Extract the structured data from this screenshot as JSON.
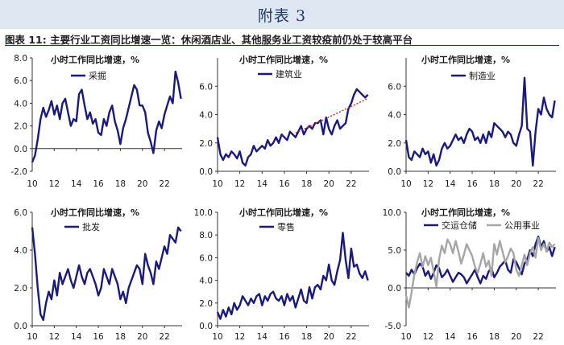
{
  "header": {
    "title": "附表 3"
  },
  "figure": {
    "label": "图表 11:",
    "title": "主要行业工资同比增速一览：休闲酒店业、其他服务业工资较疫前仍处于较高平台"
  },
  "colors": {
    "navy": "#1a1a7e",
    "gray": "#a6a6a6",
    "trend": "#d42020"
  },
  "chart_data": [
    {
      "type": "line",
      "title": "小时工作同比增速，%",
      "xlabel": "",
      "ylabel": "",
      "xlim": [
        2010,
        2023.6
      ],
      "xticks": [
        10,
        12,
        14,
        16,
        18,
        20,
        22
      ],
      "ylim": [
        -2,
        8
      ],
      "yticks": [
        "-2.0",
        "0.0",
        "2.0",
        "4.0",
        "6.0",
        "8.0"
      ],
      "ytick_values": [
        -2,
        0,
        2,
        4,
        6,
        8
      ],
      "grid": false,
      "series": [
        {
          "name": "采掘",
          "color": "#1a1a7e",
          "x": [
            2010,
            2010.25,
            2010.5,
            2010.75,
            2011,
            2011.25,
            2011.5,
            2011.75,
            2012,
            2012.25,
            2012.5,
            2012.75,
            2013,
            2013.25,
            2013.5,
            2013.75,
            2014,
            2014.25,
            2014.5,
            2014.75,
            2015,
            2015.25,
            2015.5,
            2015.75,
            2016,
            2016.25,
            2016.5,
            2016.75,
            2017,
            2017.25,
            2017.5,
            2017.75,
            2018,
            2018.25,
            2018.5,
            2018.75,
            2019,
            2019.25,
            2019.5,
            2019.75,
            2020,
            2020.25,
            2020.5,
            2020.75,
            2021,
            2021.25,
            2021.5,
            2021.75,
            2022,
            2022.25,
            2022.5,
            2022.75,
            2023,
            2023.25,
            2023.5
          ],
          "y": [
            -1.2,
            -0.6,
            0.8,
            2.6,
            3.6,
            2.8,
            3.4,
            4.2,
            3.0,
            3.8,
            2.6,
            4.0,
            4.4,
            3.2,
            2.0,
            2.6,
            2.4,
            4.8,
            5.2,
            3.8,
            2.6,
            3.2,
            2.2,
            2.6,
            1.4,
            1.2,
            2.6,
            2.0,
            3.2,
            3.8,
            2.4,
            1.6,
            0.4,
            1.8,
            2.6,
            3.6,
            4.6,
            5.6,
            5.2,
            3.8,
            3.8,
            3.2,
            1.4,
            0.6,
            -0.4,
            1.6,
            2.4,
            1.8,
            3.0,
            3.8,
            4.6,
            4.0,
            6.8,
            5.8,
            4.4
          ]
        }
      ]
    },
    {
      "type": "line",
      "title": "小时工作同比增速，%",
      "xlabel": "",
      "ylabel": "",
      "xlim": [
        2010,
        2023.6
      ],
      "xticks": [
        10,
        12,
        14,
        16,
        18,
        20,
        22
      ],
      "ylim": [
        0,
        8
      ],
      "yticks": [
        "0.0",
        "2.0",
        "4.0",
        "6.0"
      ],
      "ytick_values": [
        0,
        2,
        4,
        6
      ],
      "grid": false,
      "series": [
        {
          "name": "建筑业",
          "color": "#1a1a7e",
          "x": [
            2010,
            2010.25,
            2010.5,
            2010.75,
            2011,
            2011.25,
            2011.5,
            2011.75,
            2012,
            2012.25,
            2012.5,
            2012.75,
            2013,
            2013.25,
            2013.5,
            2013.75,
            2014,
            2014.25,
            2014.5,
            2014.75,
            2015,
            2015.25,
            2015.5,
            2015.75,
            2016,
            2016.25,
            2016.5,
            2016.75,
            2017,
            2017.25,
            2017.5,
            2017.75,
            2018,
            2018.25,
            2018.5,
            2018.75,
            2019,
            2019.25,
            2019.5,
            2019.75,
            2020,
            2020.25,
            2020.5,
            2020.75,
            2021,
            2021.25,
            2021.5,
            2021.75,
            2022,
            2022.25,
            2022.5,
            2022.75,
            2023,
            2023.25,
            2023.5
          ],
          "y": [
            2.4,
            1.2,
            0.8,
            1.2,
            1.0,
            1.4,
            1.2,
            0.9,
            1.4,
            0.6,
            0.4,
            1.0,
            1.2,
            1.8,
            1.4,
            1.6,
            1.8,
            1.6,
            2.2,
            1.8,
            2.0,
            2.4,
            2.0,
            2.6,
            2.4,
            2.2,
            2.8,
            2.6,
            2.4,
            2.8,
            3.2,
            2.6,
            3.0,
            3.2,
            3.0,
            3.4,
            3.4,
            3.6,
            2.6,
            3.8,
            3.0,
            2.6,
            3.2,
            3.6,
            3.0,
            3.2,
            3.4,
            4.4,
            4.8,
            5.4,
            5.8,
            5.6,
            5.4,
            5.2,
            5.4
          ]
        },
        {
          "name": "",
          "color": "#d42020",
          "dashed": true,
          "x": [
            2017,
            2023.4
          ],
          "y": [
            2.7,
            5.1
          ]
        }
      ]
    },
    {
      "type": "line",
      "title": "小时工作同比增速，%",
      "xlabel": "",
      "ylabel": "",
      "xlim": [
        2010,
        2023.6
      ],
      "xticks": [
        10,
        12,
        14,
        16,
        18,
        20,
        22
      ],
      "ylim": [
        0,
        8
      ],
      "yticks": [
        "0.0",
        "2.0",
        "4.0",
        "6.0"
      ],
      "ytick_values": [
        0,
        2,
        4,
        6
      ],
      "grid": false,
      "series": [
        {
          "name": "制造业",
          "color": "#1a1a7e",
          "x": [
            2010,
            2010.25,
            2010.5,
            2010.75,
            2011,
            2011.25,
            2011.5,
            2011.75,
            2012,
            2012.25,
            2012.5,
            2012.75,
            2013,
            2013.25,
            2013.5,
            2013.75,
            2014,
            2014.25,
            2014.5,
            2014.75,
            2015,
            2015.25,
            2015.5,
            2015.75,
            2016,
            2016.25,
            2016.5,
            2016.75,
            2017,
            2017.25,
            2017.5,
            2017.75,
            2018,
            2018.25,
            2018.5,
            2018.75,
            2019,
            2019.25,
            2019.5,
            2019.75,
            2020,
            2020.25,
            2020.5,
            2020.75,
            2021,
            2021.25,
            2021.5,
            2021.75,
            2022,
            2022.25,
            2022.5,
            2022.75,
            2023,
            2023.25,
            2023.5
          ],
          "y": [
            2.2,
            1.0,
            0.8,
            1.4,
            1.2,
            1.0,
            1.6,
            1.2,
            1.4,
            0.6,
            1.2,
            0.4,
            0.8,
            1.6,
            2.0,
            1.6,
            1.8,
            2.2,
            2.6,
            2.2,
            2.4,
            2.0,
            2.6,
            3.0,
            2.8,
            2.2,
            2.4,
            2.0,
            2.6,
            2.0,
            2.8,
            2.4,
            3.4,
            3.2,
            3.0,
            2.8,
            2.4,
            2.8,
            2.6,
            2.0,
            1.8,
            2.6,
            3.2,
            6.6,
            3.0,
            2.8,
            0.4,
            2.8,
            4.4,
            4.0,
            5.2,
            4.4,
            4.0,
            3.8,
            5.0
          ]
        }
      ]
    },
    {
      "type": "line",
      "title": "小时工作同比增速，%",
      "xlabel": "",
      "ylabel": "",
      "xlim": [
        2010,
        2023.6
      ],
      "xticks": [
        10,
        12,
        14,
        16,
        18,
        20,
        22
      ],
      "ylim": [
        0,
        6
      ],
      "yticks": [
        "0.0",
        "2.0",
        "4.0",
        "6.0"
      ],
      "ytick_values": [
        0,
        2,
        4,
        6
      ],
      "grid": false,
      "series": [
        {
          "name": "批发",
          "color": "#1a1a7e",
          "x": [
            2010,
            2010.25,
            2010.5,
            2010.75,
            2011,
            2011.25,
            2011.5,
            2011.75,
            2012,
            2012.25,
            2012.5,
            2012.75,
            2013,
            2013.25,
            2013.5,
            2013.75,
            2014,
            2014.25,
            2014.5,
            2014.75,
            2015,
            2015.25,
            2015.5,
            2015.75,
            2016,
            2016.25,
            2016.5,
            2016.75,
            2017,
            2017.25,
            2017.5,
            2017.75,
            2018,
            2018.25,
            2018.5,
            2018.75,
            2019,
            2019.25,
            2019.5,
            2019.75,
            2020,
            2020.25,
            2020.5,
            2020.75,
            2021,
            2021.25,
            2021.5,
            2021.75,
            2022,
            2022.25,
            2022.5,
            2022.75,
            2023,
            2023.25,
            2023.5
          ],
          "y": [
            5.2,
            3.8,
            2.0,
            0.6,
            0.3,
            1.2,
            1.8,
            1.4,
            2.4,
            1.6,
            2.8,
            2.2,
            2.6,
            3.0,
            2.4,
            2.0,
            2.6,
            3.2,
            2.6,
            2.2,
            2.8,
            3.0,
            2.6,
            2.2,
            1.6,
            2.0,
            3.0,
            2.6,
            2.2,
            3.0,
            2.6,
            2.2,
            1.4,
            1.8,
            1.2,
            2.0,
            2.4,
            2.8,
            3.2,
            3.0,
            2.2,
            3.8,
            3.2,
            2.8,
            2.2,
            3.4,
            3.0,
            3.6,
            4.2,
            3.8,
            4.8,
            4.6,
            4.4,
            5.2,
            5.0
          ]
        }
      ]
    },
    {
      "type": "line",
      "title": "小时工作同比增速，%",
      "xlabel": "",
      "ylabel": "",
      "xlim": [
        2010,
        2023.6
      ],
      "xticks": [
        10,
        12,
        14,
        16,
        18,
        20,
        22
      ],
      "ylim": [
        0,
        10
      ],
      "yticks": [
        "0.0",
        "2.0",
        "4.0",
        "6.0",
        "8.0",
        "10.0"
      ],
      "ytick_values": [
        0,
        2,
        4,
        6,
        8,
        10
      ],
      "grid": false,
      "series": [
        {
          "name": "零售",
          "color": "#1a1a7e",
          "x": [
            2010,
            2010.25,
            2010.5,
            2010.75,
            2011,
            2011.25,
            2011.5,
            2011.75,
            2012,
            2012.25,
            2012.5,
            2012.75,
            2013,
            2013.25,
            2013.5,
            2013.75,
            2014,
            2014.25,
            2014.5,
            2014.75,
            2015,
            2015.25,
            2015.5,
            2015.75,
            2016,
            2016.25,
            2016.5,
            2016.75,
            2017,
            2017.25,
            2017.5,
            2017.75,
            2018,
            2018.25,
            2018.5,
            2018.75,
            2019,
            2019.25,
            2019.5,
            2019.75,
            2020,
            2020.25,
            2020.5,
            2020.75,
            2021,
            2021.25,
            2021.5,
            2021.75,
            2022,
            2022.25,
            2022.5,
            2022.75,
            2023,
            2023.25,
            2023.5
          ],
          "y": [
            1.2,
            0.6,
            1.4,
            0.8,
            1.6,
            1.0,
            2.0,
            1.4,
            1.8,
            2.6,
            2.2,
            1.8,
            2.4,
            2.0,
            2.6,
            2.8,
            1.8,
            2.6,
            2.2,
            2.8,
            3.0,
            2.4,
            2.2,
            2.6,
            1.8,
            2.8,
            2.2,
            2.6,
            1.6,
            2.4,
            3.2,
            2.2,
            2.0,
            3.4,
            2.4,
            3.4,
            3.6,
            3.2,
            4.4,
            4.0,
            5.4,
            4.0,
            3.6,
            4.8,
            5.8,
            8.2,
            5.8,
            4.2,
            6.8,
            5.2,
            5.4,
            4.6,
            4.2,
            4.8,
            4.0
          ]
        }
      ]
    },
    {
      "type": "line",
      "title": "小时工作同比增速，%",
      "xlabel": "",
      "ylabel": "",
      "xlim": [
        2010,
        2023.6
      ],
      "xticks": [
        10,
        12,
        14,
        16,
        18,
        20,
        22
      ],
      "ylim": [
        -5,
        10
      ],
      "yticks": [
        "-5.0",
        "0.0",
        "5.0",
        "10.0"
      ],
      "ytick_values": [
        -5,
        0,
        5,
        10
      ],
      "grid": false,
      "series": [
        {
          "name": "交运仓储",
          "color": "#1a1a7e",
          "x": [
            2010,
            2010.25,
            2010.5,
            2010.75,
            2011,
            2011.25,
            2011.5,
            2011.75,
            2012,
            2012.25,
            2012.5,
            2012.75,
            2013,
            2013.25,
            2013.5,
            2013.75,
            2014,
            2014.25,
            2014.5,
            2014.75,
            2015,
            2015.25,
            2015.5,
            2015.75,
            2016,
            2016.25,
            2016.5,
            2016.75,
            2017,
            2017.25,
            2017.5,
            2017.75,
            2018,
            2018.25,
            2018.5,
            2018.75,
            2019,
            2019.25,
            2019.5,
            2019.75,
            2020,
            2020.25,
            2020.5,
            2020.75,
            2021,
            2021.25,
            2021.5,
            2021.75,
            2022,
            2022.25,
            2022.5,
            2022.75,
            2023,
            2023.25,
            2023.5
          ],
          "y": [
            2.0,
            1.6,
            2.4,
            1.8,
            2.6,
            3.2,
            2.8,
            1.6,
            2.2,
            1.2,
            2.0,
            3.0,
            2.6,
            1.4,
            1.8,
            2.4,
            1.6,
            0.8,
            1.4,
            2.0,
            1.8,
            1.4,
            0.6,
            1.2,
            1.8,
            2.4,
            1.4,
            0.6,
            1.6,
            1.2,
            2.2,
            2.6,
            1.4,
            2.0,
            2.8,
            3.2,
            3.6,
            2.4,
            2.0,
            3.8,
            3.4,
            2.6,
            1.8,
            3.2,
            3.8,
            5.0,
            4.2,
            5.8,
            6.8,
            5.4,
            6.2,
            4.8,
            5.4,
            4.2,
            5.4
          ]
        },
        {
          "name": "公用事业",
          "color": "#a6a6a6",
          "x": [
            2010,
            2010.25,
            2010.5,
            2010.75,
            2011,
            2011.25,
            2011.5,
            2011.75,
            2012,
            2012.25,
            2012.5,
            2012.75,
            2013,
            2013.25,
            2013.5,
            2013.75,
            2014,
            2014.25,
            2014.5,
            2014.75,
            2015,
            2015.25,
            2015.5,
            2015.75,
            2016,
            2016.25,
            2016.5,
            2016.75,
            2017,
            2017.25,
            2017.5,
            2017.75,
            2018,
            2018.25,
            2018.5,
            2018.75,
            2019,
            2019.25,
            2019.5,
            2019.75,
            2020,
            2020.25,
            2020.5,
            2020.75,
            2021,
            2021.25,
            2021.5,
            2021.75,
            2022,
            2022.25,
            2022.5,
            2022.75,
            2023,
            2023.25,
            2023.5
          ],
          "y": [
            -1.0,
            -2.6,
            -0.6,
            1.8,
            3.4,
            4.6,
            2.8,
            4.2,
            3.0,
            4.0,
            2.2,
            0.2,
            3.8,
            5.6,
            4.6,
            6.4,
            5.8,
            4.6,
            6.2,
            4.8,
            3.2,
            4.4,
            5.8,
            5.0,
            4.2,
            2.8,
            2.0,
            3.2,
            4.6,
            2.8,
            3.6,
            1.6,
            5.8,
            4.4,
            6.2,
            4.8,
            3.4,
            4.2,
            5.2,
            4.6,
            2.4,
            1.6,
            3.0,
            4.4,
            3.0,
            4.6,
            5.4,
            4.0,
            6.6,
            5.0,
            5.8,
            4.8,
            6.0,
            5.4,
            5.8
          ]
        }
      ]
    }
  ]
}
